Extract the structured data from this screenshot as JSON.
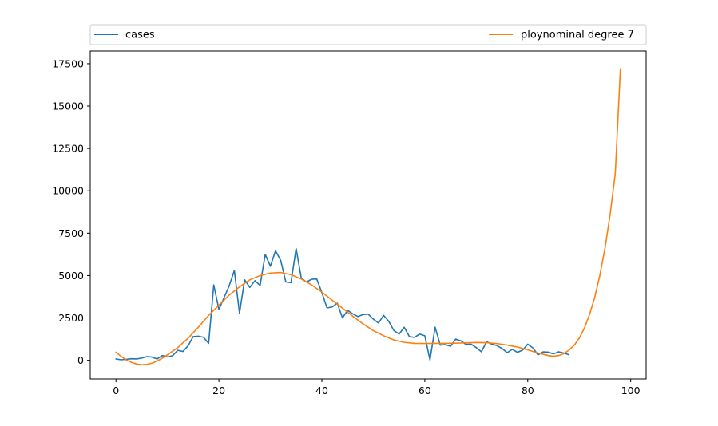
{
  "chart_data": {
    "type": "line",
    "title": "",
    "xlabel": "",
    "ylabel": "",
    "xlim": [
      -5,
      103
    ],
    "ylim": [
      -1100,
      18250
    ],
    "x_ticks": [
      0,
      20,
      40,
      60,
      80,
      100
    ],
    "y_ticks": [
      0,
      2500,
      5000,
      7500,
      10000,
      12500,
      15000,
      17500
    ],
    "grid": false,
    "legend_placement": "top, expanded above plot",
    "series": [
      {
        "name": "cases",
        "color": "#1f77b4",
        "x": [
          0,
          1,
          2,
          3,
          4,
          5,
          6,
          7,
          8,
          9,
          10,
          11,
          12,
          13,
          14,
          15,
          16,
          17,
          18,
          19,
          20,
          21,
          22,
          23,
          24,
          25,
          26,
          27,
          28,
          29,
          30,
          31,
          32,
          33,
          34,
          35,
          36,
          37,
          38,
          39,
          40,
          41,
          42,
          43,
          44,
          45,
          46,
          47,
          48,
          49,
          50,
          51,
          52,
          53,
          54,
          55,
          56,
          57,
          58,
          59,
          60,
          61,
          62,
          63,
          64,
          65,
          66,
          67,
          68,
          69,
          70,
          71,
          72,
          73,
          74,
          75,
          76,
          77,
          78,
          79,
          80,
          81,
          82,
          83,
          84,
          85,
          86,
          87,
          88
        ],
        "y": [
          80,
          30,
          60,
          90,
          80,
          130,
          220,
          190,
          80,
          280,
          200,
          270,
          590,
          520,
          850,
          1400,
          1420,
          1360,
          1000,
          4450,
          3000,
          3700,
          4400,
          5300,
          2780,
          4750,
          4300,
          4700,
          4420,
          6250,
          5550,
          6460,
          5900,
          4620,
          4580,
          6600,
          4850,
          4620,
          4780,
          4800,
          4000,
          3090,
          3150,
          3370,
          2500,
          2950,
          2740,
          2580,
          2700,
          2730,
          2430,
          2200,
          2650,
          2300,
          1750,
          1550,
          1950,
          1400,
          1350,
          1550,
          1450,
          20,
          1950,
          900,
          920,
          830,
          1250,
          1150,
          940,
          950,
          750,
          500,
          1100,
          950,
          870,
          700,
          450,
          650,
          470,
          600,
          950,
          730,
          320,
          500,
          480,
          380,
          500,
          430,
          330
        ]
      },
      {
        "name": "ploynominal degree 7",
        "color": "#ff7f0e",
        "x": [
          0,
          1,
          2,
          3,
          4,
          5,
          6,
          7,
          8,
          9,
          10,
          12,
          14,
          16,
          18,
          20,
          22,
          24,
          26,
          28,
          30,
          32,
          34,
          36,
          38,
          40,
          42,
          44,
          46,
          48,
          50,
          52,
          54,
          56,
          58,
          60,
          62,
          64,
          66,
          68,
          70,
          72,
          74,
          76,
          78,
          80,
          82,
          84,
          85,
          86,
          87,
          88,
          89,
          90,
          91,
          92,
          93,
          94,
          95,
          96,
          97,
          98
        ],
        "y": [
          480,
          230,
          20,
          -120,
          -220,
          -260,
          -240,
          -170,
          -40,
          120,
          320,
          750,
          1300,
          1950,
          2650,
          3250,
          3850,
          4330,
          4750,
          5000,
          5150,
          5180,
          5050,
          4800,
          4450,
          4020,
          3550,
          3080,
          2600,
          2150,
          1750,
          1450,
          1200,
          1060,
          1000,
          990,
          1000,
          1000,
          1010,
          1030,
          1050,
          1040,
          990,
          900,
          780,
          620,
          430,
          280,
          240,
          280,
          390,
          600,
          880,
          1300,
          1900,
          2700,
          3700,
          5000,
          6600,
          8600,
          11000,
          17200
        ]
      }
    ]
  }
}
